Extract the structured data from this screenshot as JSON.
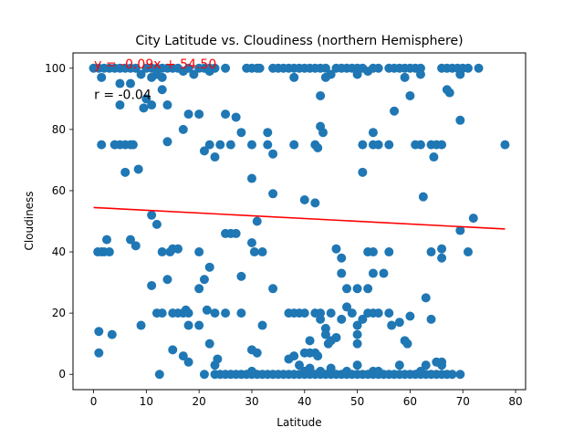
{
  "chart_data": {
    "type": "scatter",
    "title": "City Latitude vs. Cloudiness (northern Hemisphere)",
    "xlabel": "Latitude",
    "ylabel": "Cloudiness",
    "xlim": [
      -3.9,
      81.9
    ],
    "ylim": [
      -5,
      105
    ],
    "xticks": [
      0,
      10,
      20,
      30,
      40,
      50,
      60,
      70,
      80
    ],
    "yticks": [
      0,
      20,
      40,
      60,
      80,
      100
    ],
    "grid": false,
    "colors": {
      "points": "#1f77b4",
      "line": "#ff0000",
      "equation": "#ff0000",
      "r_text": "#000000"
    },
    "regression": {
      "slope": -0.09,
      "intercept": 54.5,
      "x_range": [
        0,
        78
      ],
      "equation_label": "y = -0.09x + 54.50",
      "r_label": "r = -0.04",
      "equation_anchor": [
        0.1,
        100
      ],
      "r_anchor": [
        0.1,
        90
      ]
    },
    "series": [
      {
        "points": [
          [
            0,
            100
          ],
          [
            1,
            100
          ],
          [
            1.5,
            97
          ],
          [
            2,
            100
          ],
          [
            3,
            100
          ],
          [
            4,
            100
          ],
          [
            5,
            100
          ],
          [
            5,
            95
          ],
          [
            6,
            100
          ],
          [
            7,
            100
          ],
          [
            7,
            95
          ],
          [
            8,
            100
          ],
          [
            9,
            98
          ],
          [
            10,
            100
          ],
          [
            11,
            100
          ],
          [
            11,
            97
          ],
          [
            12,
            100
          ],
          [
            13,
            100
          ],
          [
            14,
            100
          ],
          [
            13,
            97
          ],
          [
            15,
            100
          ],
          [
            16,
            100
          ],
          [
            17,
            99
          ],
          [
            18,
            100
          ],
          [
            19,
            98
          ],
          [
            20,
            100
          ],
          [
            21,
            100
          ],
          [
            22,
            100
          ],
          [
            22,
            99
          ],
          [
            23,
            100
          ],
          [
            25,
            100
          ],
          [
            29,
            100
          ],
          [
            30,
            100
          ],
          [
            31,
            100
          ],
          [
            31.5,
            100
          ],
          [
            34,
            100
          ],
          [
            35,
            100
          ],
          [
            36,
            100
          ],
          [
            37,
            100
          ],
          [
            38,
            100
          ],
          [
            38,
            97
          ],
          [
            39,
            100
          ],
          [
            40,
            100
          ],
          [
            41,
            100
          ],
          [
            42,
            100
          ],
          [
            43,
            100
          ],
          [
            44,
            100
          ],
          [
            44,
            97
          ],
          [
            45,
            98
          ],
          [
            46,
            100
          ],
          [
            47,
            100
          ],
          [
            48,
            100
          ],
          [
            49,
            100
          ],
          [
            50,
            100
          ],
          [
            50,
            98
          ],
          [
            51,
            100
          ],
          [
            52,
            99
          ],
          [
            53,
            100
          ],
          [
            54,
            100
          ],
          [
            56,
            100
          ],
          [
            57,
            100
          ],
          [
            58,
            100
          ],
          [
            59,
            100
          ],
          [
            59,
            97
          ],
          [
            60,
            100
          ],
          [
            61,
            100
          ],
          [
            62,
            100
          ],
          [
            62,
            98
          ],
          [
            66,
            100
          ],
          [
            67,
            100
          ],
          [
            67.5,
            92
          ],
          [
            68,
            100
          ],
          [
            69,
            100
          ],
          [
            69.5,
            98
          ],
          [
            70,
            100
          ],
          [
            71,
            100
          ],
          [
            73,
            100
          ],
          [
            43,
            91
          ],
          [
            60,
            91
          ],
          [
            67,
            93
          ],
          [
            1.5,
            75
          ],
          [
            4,
            75
          ],
          [
            5,
            75
          ],
          [
            6,
            75
          ],
          [
            7,
            75
          ],
          [
            7.5,
            75
          ],
          [
            11,
            88
          ],
          [
            9.5,
            87
          ],
          [
            10,
            90
          ],
          [
            12,
            98
          ],
          [
            13,
            93
          ],
          [
            14,
            88
          ],
          [
            14,
            76
          ],
          [
            17,
            80
          ],
          [
            18,
            85
          ],
          [
            20,
            85
          ],
          [
            21,
            73
          ],
          [
            22,
            75
          ],
          [
            23,
            71
          ],
          [
            24,
            75
          ],
          [
            25,
            85
          ],
          [
            26,
            75
          ],
          [
            27,
            84
          ],
          [
            28,
            79
          ],
          [
            30,
            75
          ],
          [
            33,
            79
          ],
          [
            33,
            75
          ],
          [
            34,
            72
          ],
          [
            38,
            75
          ],
          [
            42,
            75
          ],
          [
            42.5,
            74
          ],
          [
            43,
            81
          ],
          [
            43.5,
            79
          ],
          [
            51,
            75
          ],
          [
            53,
            75
          ],
          [
            53,
            79
          ],
          [
            54,
            75
          ],
          [
            56,
            75
          ],
          [
            57,
            86
          ],
          [
            62,
            75
          ],
          [
            61,
            75
          ],
          [
            64,
            75
          ],
          [
            64.5,
            71
          ],
          [
            65,
            75
          ],
          [
            66,
            75
          ],
          [
            69.5,
            83
          ],
          [
            78,
            75
          ],
          [
            5,
            88
          ],
          [
            6,
            66
          ],
          [
            8.5,
            67
          ],
          [
            40,
            57
          ],
          [
            42,
            56
          ],
          [
            30,
            64
          ],
          [
            34,
            59
          ],
          [
            51,
            66
          ],
          [
            62.5,
            58
          ],
          [
            11,
            52
          ],
          [
            12,
            49
          ],
          [
            31,
            50
          ],
          [
            2.5,
            44
          ],
          [
            7,
            44
          ],
          [
            8,
            42
          ],
          [
            0.8,
            40
          ],
          [
            1.5,
            40
          ],
          [
            2,
            40
          ],
          [
            3,
            40
          ],
          [
            13,
            40
          ],
          [
            14.5,
            40
          ],
          [
            15,
            41
          ],
          [
            16,
            41
          ],
          [
            20,
            40
          ],
          [
            22,
            35
          ],
          [
            25,
            46
          ],
          [
            26,
            46
          ],
          [
            27,
            46
          ],
          [
            30,
            43
          ],
          [
            30.5,
            40
          ],
          [
            32,
            40
          ],
          [
            46,
            41
          ],
          [
            47,
            38
          ],
          [
            47,
            33
          ],
          [
            50,
            28
          ],
          [
            52,
            40
          ],
          [
            53,
            40
          ],
          [
            52,
            28
          ],
          [
            53,
            33
          ],
          [
            55,
            33
          ],
          [
            56,
            40
          ],
          [
            64,
            40
          ],
          [
            66,
            41
          ],
          [
            66,
            38
          ],
          [
            69.5,
            47
          ],
          [
            71,
            40
          ],
          [
            72,
            51
          ],
          [
            48,
            28
          ],
          [
            11,
            29
          ],
          [
            14,
            31
          ],
          [
            15,
            20
          ],
          [
            12,
            20
          ],
          [
            13,
            20
          ],
          [
            16,
            20
          ],
          [
            17,
            20
          ],
          [
            17.5,
            21
          ],
          [
            18,
            20
          ],
          [
            18,
            16
          ],
          [
            20,
            28
          ],
          [
            21,
            31
          ],
          [
            21.5,
            21
          ],
          [
            20,
            16
          ],
          [
            23,
            20
          ],
          [
            25,
            20
          ],
          [
            28,
            32
          ],
          [
            28,
            20
          ],
          [
            32,
            16
          ],
          [
            34,
            28
          ],
          [
            37,
            20
          ],
          [
            38,
            20
          ],
          [
            39,
            20
          ],
          [
            40,
            20
          ],
          [
            42,
            20
          ],
          [
            43,
            20
          ],
          [
            43,
            18
          ],
          [
            44,
            15
          ],
          [
            44,
            13
          ],
          [
            45,
            20
          ],
          [
            46,
            12
          ],
          [
            47,
            18
          ],
          [
            48,
            22
          ],
          [
            49,
            20
          ],
          [
            50,
            16
          ],
          [
            51,
            18
          ],
          [
            52,
            20
          ],
          [
            53,
            20
          ],
          [
            54,
            20
          ],
          [
            56,
            20
          ],
          [
            56.5,
            16
          ],
          [
            58,
            17
          ],
          [
            59,
            11
          ],
          [
            59.5,
            10
          ],
          [
            60,
            19
          ],
          [
            63,
            25
          ],
          [
            64,
            18
          ],
          [
            1,
            14
          ],
          [
            3.5,
            13
          ],
          [
            9,
            16
          ],
          [
            15,
            8
          ],
          [
            17,
            6
          ],
          [
            18,
            4
          ],
          [
            22,
            10
          ],
          [
            23,
            3
          ],
          [
            23.5,
            5
          ],
          [
            41,
            11
          ],
          [
            1,
            7
          ],
          [
            30,
            8
          ],
          [
            31,
            7
          ],
          [
            42,
            7
          ],
          [
            42.5,
            6
          ],
          [
            37,
            5
          ],
          [
            38,
            6
          ],
          [
            40,
            7
          ],
          [
            41,
            7
          ],
          [
            44.5,
            10
          ],
          [
            45,
            11
          ],
          [
            50,
            13
          ],
          [
            50,
            10
          ],
          [
            63,
            3
          ],
          [
            66,
            3
          ],
          [
            66,
            4
          ],
          [
            12.5,
            0
          ],
          [
            21,
            0
          ],
          [
            23,
            0
          ],
          [
            24,
            0
          ],
          [
            25,
            0
          ],
          [
            26,
            0
          ],
          [
            27,
            0
          ],
          [
            28,
            0
          ],
          [
            29,
            0
          ],
          [
            30,
            0
          ],
          [
            31,
            0
          ],
          [
            32,
            0
          ],
          [
            33,
            0
          ],
          [
            34,
            0
          ],
          [
            35,
            0
          ],
          [
            36,
            0
          ],
          [
            37,
            0
          ],
          [
            38,
            0
          ],
          [
            39,
            0
          ],
          [
            40,
            0
          ],
          [
            41,
            0
          ],
          [
            42,
            0
          ],
          [
            43,
            0
          ],
          [
            44,
            0
          ],
          [
            45,
            0
          ],
          [
            46,
            0
          ],
          [
            47,
            0
          ],
          [
            48,
            0
          ],
          [
            49,
            0
          ],
          [
            50,
            0
          ],
          [
            51,
            0
          ],
          [
            52,
            0
          ],
          [
            53,
            0
          ],
          [
            54,
            0
          ],
          [
            55,
            0
          ],
          [
            56,
            0
          ],
          [
            57,
            0
          ],
          [
            58,
            0
          ],
          [
            59,
            0
          ],
          [
            60,
            0
          ],
          [
            61,
            0
          ],
          [
            62,
            0
          ],
          [
            63,
            0
          ],
          [
            64,
            0
          ],
          [
            65,
            0
          ],
          [
            66,
            0
          ],
          [
            67,
            0
          ],
          [
            68,
            0
          ],
          [
            69.5,
            0
          ],
          [
            30,
            1
          ],
          [
            39,
            3
          ],
          [
            40,
            1
          ],
          [
            41,
            2
          ],
          [
            43,
            1
          ],
          [
            45,
            2
          ],
          [
            48,
            1
          ],
          [
            50,
            3
          ],
          [
            53,
            1
          ],
          [
            54,
            1
          ],
          [
            58,
            3
          ],
          [
            62,
            1
          ],
          [
            65,
            4
          ]
        ]
      }
    ]
  }
}
